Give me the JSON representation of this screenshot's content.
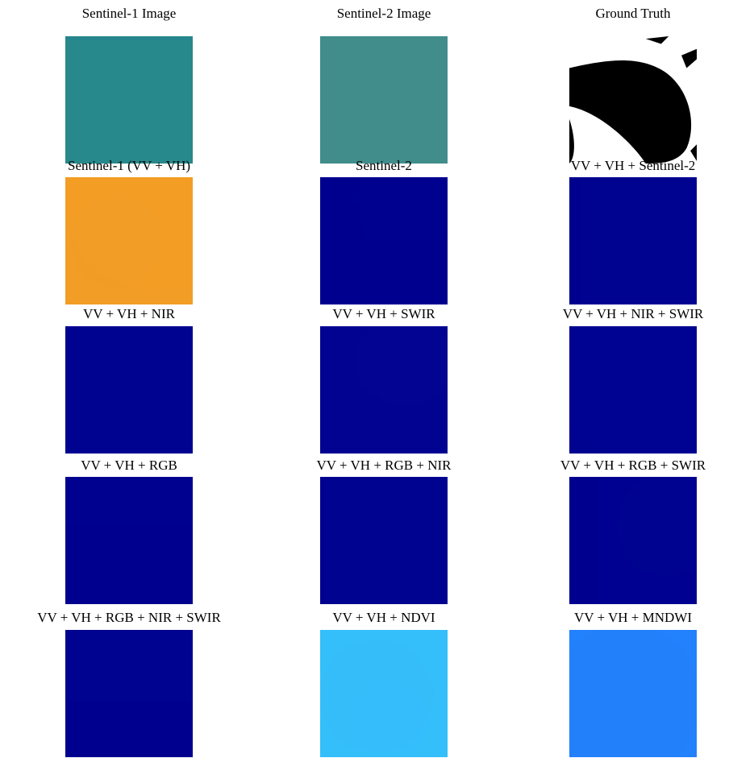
{
  "panels": [
    {
      "title": "Sentinel-1 Image"
    },
    {
      "title": "Sentinel-2 Image"
    },
    {
      "title": "Ground Truth"
    },
    {
      "title": "Sentinel-1 (VV + VH)"
    },
    {
      "title": "Sentinel-2"
    },
    {
      "title": "VV + VH + Sentinel-2"
    },
    {
      "title": "VV + VH + NIR"
    },
    {
      "title": "VV + VH + SWIR"
    },
    {
      "title": "VV + VH + NIR + SWIR"
    },
    {
      "title": "VV + VH + RGB"
    },
    {
      "title": "VV + VH + RGB + NIR"
    },
    {
      "title": "VV + VH + RGB + SWIR"
    },
    {
      "title": "VV + VH + RGB + NIR + SWIR"
    },
    {
      "title": "VV + VH + NDVI"
    },
    {
      "title": "VV + VH + MNDWI"
    }
  ]
}
